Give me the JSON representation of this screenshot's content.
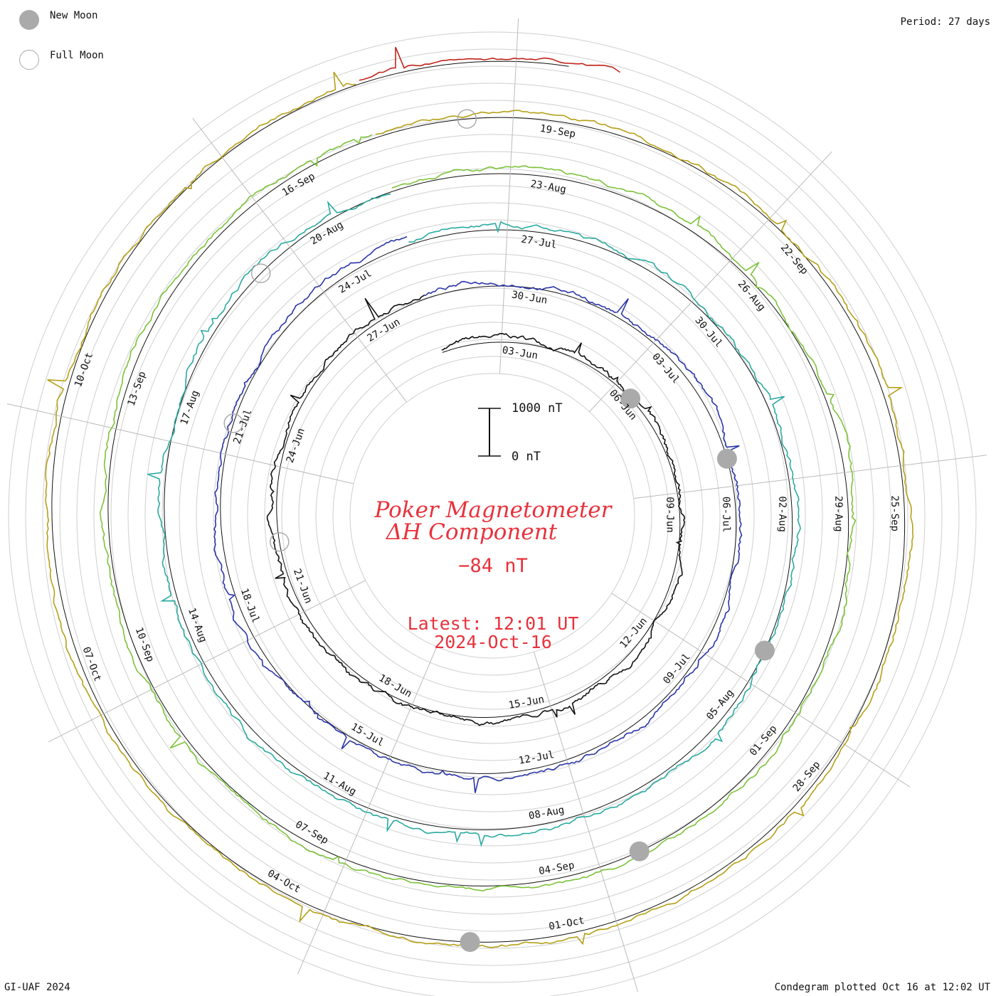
{
  "legend": {
    "new_moon_label": "New Moon",
    "full_moon_label": "Full Moon",
    "new_moon_color": "#aaaaaa",
    "full_moon_color": "#aaaaaa"
  },
  "period_label": "Period: 27 days",
  "footer_left": "GI-UAF 2024",
  "footer_right": "Condegram plotted Oct 16 at 12:02 UT",
  "center": {
    "title_line1": "Poker Magnetometer",
    "title_line2": "ΔH Component",
    "current_value": "−84 nT",
    "latest_line1": "Latest: 12:01 UT",
    "latest_line2": "2024-Oct-16",
    "scale_top_label": "1000 nT",
    "scale_bottom_label": "0 nT",
    "text_color": "#e8323c"
  },
  "chart_data": {
    "type": "line",
    "title": "Poker Magnetometer ΔH Component",
    "period_days": 27,
    "scale_bar_nT": [
      0,
      1000
    ],
    "latest_value_nT": -84,
    "grid": true,
    "series": [
      {
        "color": "#111111",
        "start": "2024-Jun-01",
        "date_labels": [
          {
            "text": "03-Jun",
            "day": 2
          },
          {
            "text": "06-Jun",
            "day": 5
          },
          {
            "text": "09-Jun",
            "day": 8
          },
          {
            "text": "12-Jun",
            "day": 11
          },
          {
            "text": "15-Jun",
            "day": 14
          },
          {
            "text": "18-Jun",
            "day": 17
          },
          {
            "text": "21-Jun",
            "day": 20
          },
          {
            "text": "24-Jun",
            "day": 23
          },
          {
            "text": "27-Jun",
            "day": 26
          }
        ]
      },
      {
        "color": "#2a35a8",
        "start": "2024-Jun-28",
        "date_labels": [
          {
            "text": "30-Jun",
            "day": 2
          },
          {
            "text": "03-Jul",
            "day": 5
          },
          {
            "text": "06-Jul",
            "day": 8
          },
          {
            "text": "09-Jul",
            "day": 11
          },
          {
            "text": "12-Jul",
            "day": 14
          },
          {
            "text": "15-Jul",
            "day": 17
          },
          {
            "text": "18-Jul",
            "day": 20
          },
          {
            "text": "21-Jul",
            "day": 23
          },
          {
            "text": "24-Jul",
            "day": 26
          }
        ]
      },
      {
        "color": "#2aaaa0",
        "start": "2024-Jul-25",
        "date_labels": [
          {
            "text": "27-Jul",
            "day": 2
          },
          {
            "text": "30-Jul",
            "day": 5
          },
          {
            "text": "02-Aug",
            "day": 8
          },
          {
            "text": "05-Aug",
            "day": 11
          },
          {
            "text": "08-Aug",
            "day": 14
          },
          {
            "text": "11-Aug",
            "day": 17
          },
          {
            "text": "14-Aug",
            "day": 20
          },
          {
            "text": "17-Aug",
            "day": 23
          },
          {
            "text": "20-Aug",
            "day": 26
          }
        ]
      },
      {
        "color": "#7cc23a",
        "start": "2024-Aug-21",
        "date_labels": [
          {
            "text": "23-Aug",
            "day": 2
          },
          {
            "text": "26-Aug",
            "day": 5
          },
          {
            "text": "29-Aug",
            "day": 8
          },
          {
            "text": "01-Sep",
            "day": 11
          },
          {
            "text": "04-Sep",
            "day": 14
          },
          {
            "text": "07-Sep",
            "day": 17
          },
          {
            "text": "10-Sep",
            "day": 20
          },
          {
            "text": "13-Sep",
            "day": 23
          },
          {
            "text": "16-Sep",
            "day": 26
          }
        ]
      },
      {
        "color": "#b5a017",
        "start": "2024-Sep-17",
        "date_labels": [
          {
            "text": "19-Sep",
            "day": 2
          },
          {
            "text": "22-Sep",
            "day": 5
          },
          {
            "text": "25-Sep",
            "day": 8
          },
          {
            "text": "28-Sep",
            "day": 11
          },
          {
            "text": "01-Oct",
            "day": 14
          },
          {
            "text": "04-Oct",
            "day": 17
          },
          {
            "text": "07-Oct",
            "day": 20
          },
          {
            "text": "10-Oct",
            "day": 23
          }
        ]
      },
      {
        "color": "#c0241a",
        "start": "2024-Oct-14",
        "date_labels": []
      }
    ],
    "new_moons": [
      "2024-Jun-06",
      "2024-Jul-05",
      "2024-Aug-04",
      "2024-Sep-03",
      "2024-Oct-02"
    ],
    "full_moons": [
      "2024-Jun-22",
      "2024-Jul-21",
      "2024-Aug-19",
      "2024-Sep-18"
    ]
  }
}
